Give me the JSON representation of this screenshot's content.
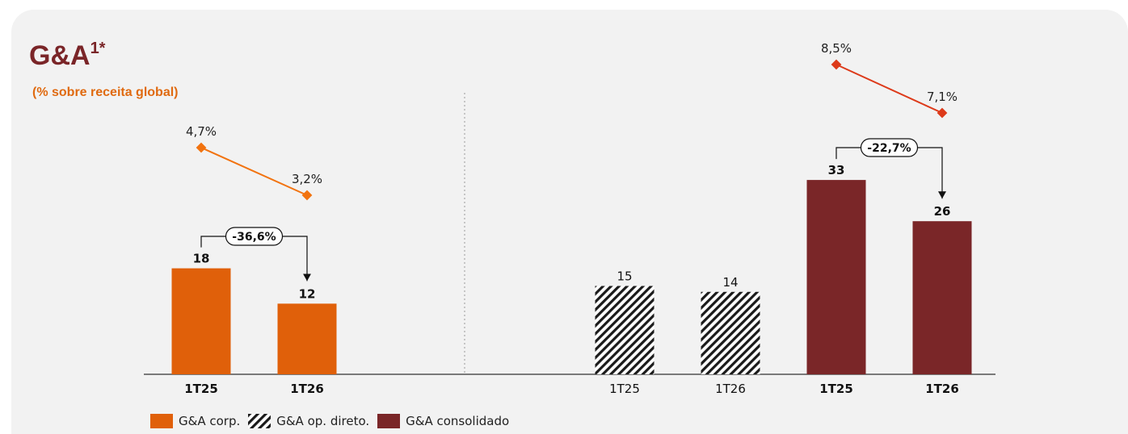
{
  "header": {
    "title": "G&A",
    "title_sup": "1*",
    "subtitle": "(% sobre receita global)"
  },
  "colors": {
    "corp": "#e0600a",
    "corp_line": "#f2730f",
    "consolidado": "#7a2628",
    "consolidado_line": "#dd3a1a",
    "hatch": "#1a1a1a"
  },
  "legend": {
    "items": [
      {
        "label": "G&A corp.",
        "style": "solid-orange"
      },
      {
        "label": "G&A op. direto.",
        "style": "hatch"
      },
      {
        "label": "G&A consolidado",
        "style": "solid-maroon"
      }
    ]
  },
  "chart_data": [
    {
      "type": "bar",
      "name": "G&A corp.",
      "categories": [
        "1T25",
        "1T26"
      ],
      "values": [
        18,
        12
      ],
      "value_labels": [
        "18",
        "12"
      ],
      "change_label": "-36,6%",
      "line": {
        "values": [
          4.7,
          3.2
        ],
        "labels": [
          "4,7%",
          "3,2%"
        ]
      }
    },
    {
      "type": "bar",
      "name": "G&A op. direto.",
      "categories": [
        "1T25",
        "1T26"
      ],
      "values": [
        15,
        14
      ],
      "value_labels": [
        "15",
        "14"
      ]
    },
    {
      "type": "bar",
      "name": "G&A consolidado",
      "categories": [
        "1T25",
        "1T26"
      ],
      "values": [
        33,
        26
      ],
      "value_labels": [
        "33",
        "26"
      ],
      "change_label": "-22,7%",
      "line": {
        "values": [
          8.5,
          7.1
        ],
        "labels": [
          "8,5%",
          "7,1%"
        ]
      }
    }
  ]
}
